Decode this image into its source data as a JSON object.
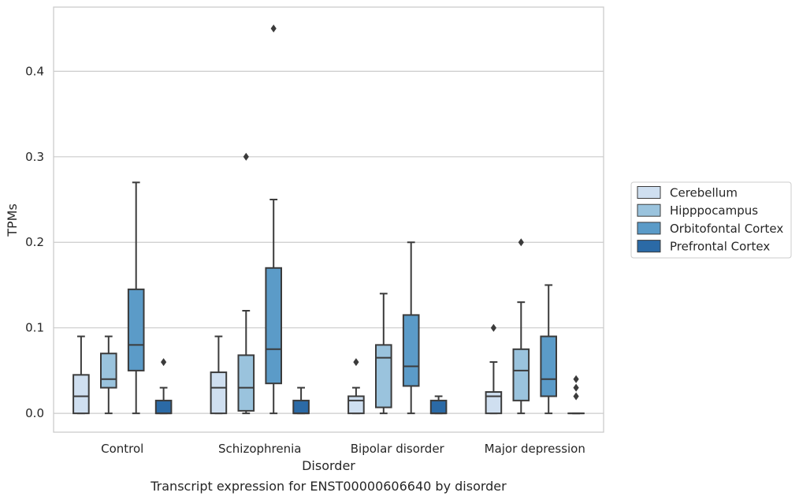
{
  "chart_data": {
    "type": "box",
    "caption": "Transcript expression for ENST00000606640 by disorder",
    "xlabel": "Disorder",
    "ylabel": "TPMs",
    "ylim": [
      -0.022,
      0.475
    ],
    "yticks": [
      0.0,
      0.1,
      0.2,
      0.3,
      0.4
    ],
    "ytick_labels": [
      "0.0",
      "0.1",
      "0.2",
      "0.3",
      "0.4"
    ],
    "grid": "horizontal",
    "legend_position": "right",
    "categories": [
      "Control",
      "Schizophrenia",
      "Bipolar disorder",
      "Major depression"
    ],
    "series": [
      {
        "name": "Cerebellum",
        "color": "#cfdff0",
        "boxes": [
          {
            "whislo": 0.0,
            "q1": 0.0,
            "med": 0.02,
            "q3": 0.045,
            "whishi": 0.09,
            "fliers": []
          },
          {
            "whislo": 0.0,
            "q1": 0.0,
            "med": 0.03,
            "q3": 0.048,
            "whishi": 0.09,
            "fliers": []
          },
          {
            "whislo": 0.0,
            "q1": 0.0,
            "med": 0.015,
            "q3": 0.02,
            "whishi": 0.03,
            "fliers": [
              0.06
            ]
          },
          {
            "whislo": 0.0,
            "q1": 0.0,
            "med": 0.02,
            "q3": 0.025,
            "whishi": 0.06,
            "fliers": [
              0.1
            ]
          }
        ]
      },
      {
        "name": "Hipppocampus",
        "color": "#9ac3dd",
        "boxes": [
          {
            "whislo": 0.0,
            "q1": 0.03,
            "med": 0.04,
            "q3": 0.07,
            "whishi": 0.09,
            "fliers": []
          },
          {
            "whislo": 0.0,
            "q1": 0.003,
            "med": 0.03,
            "q3": 0.068,
            "whishi": 0.12,
            "fliers": [
              0.3
            ]
          },
          {
            "whislo": 0.0,
            "q1": 0.007,
            "med": 0.065,
            "q3": 0.08,
            "whishi": 0.14,
            "fliers": []
          },
          {
            "whislo": 0.0,
            "q1": 0.015,
            "med": 0.05,
            "q3": 0.075,
            "whishi": 0.13,
            "fliers": [
              0.2
            ]
          }
        ]
      },
      {
        "name": "Orbitofontal Cortex",
        "color": "#5b9bc8",
        "boxes": [
          {
            "whislo": 0.0,
            "q1": 0.05,
            "med": 0.08,
            "q3": 0.145,
            "whishi": 0.27,
            "fliers": []
          },
          {
            "whislo": 0.0,
            "q1": 0.035,
            "med": 0.075,
            "q3": 0.17,
            "whishi": 0.25,
            "fliers": [
              0.45
            ]
          },
          {
            "whislo": 0.0,
            "q1": 0.032,
            "med": 0.055,
            "q3": 0.115,
            "whishi": 0.2,
            "fliers": []
          },
          {
            "whislo": 0.0,
            "q1": 0.02,
            "med": 0.04,
            "q3": 0.09,
            "whishi": 0.15,
            "fliers": []
          }
        ]
      },
      {
        "name": "Prefrontal Cortex",
        "color": "#2b6aa6",
        "boxes": [
          {
            "whislo": 0.0,
            "q1": 0.0,
            "med": 0.0,
            "q3": 0.015,
            "whishi": 0.03,
            "fliers": [
              0.06
            ]
          },
          {
            "whislo": 0.0,
            "q1": 0.0,
            "med": 0.0,
            "q3": 0.015,
            "whishi": 0.03,
            "fliers": []
          },
          {
            "whislo": 0.0,
            "q1": 0.0,
            "med": 0.0,
            "q3": 0.015,
            "whishi": 0.02,
            "fliers": []
          },
          {
            "whislo": 0.0,
            "q1": 0.0,
            "med": 0.0,
            "q3": 0.0,
            "whishi": 0.0,
            "fliers": [
              0.02,
              0.03,
              0.04
            ]
          }
        ]
      }
    ]
  }
}
